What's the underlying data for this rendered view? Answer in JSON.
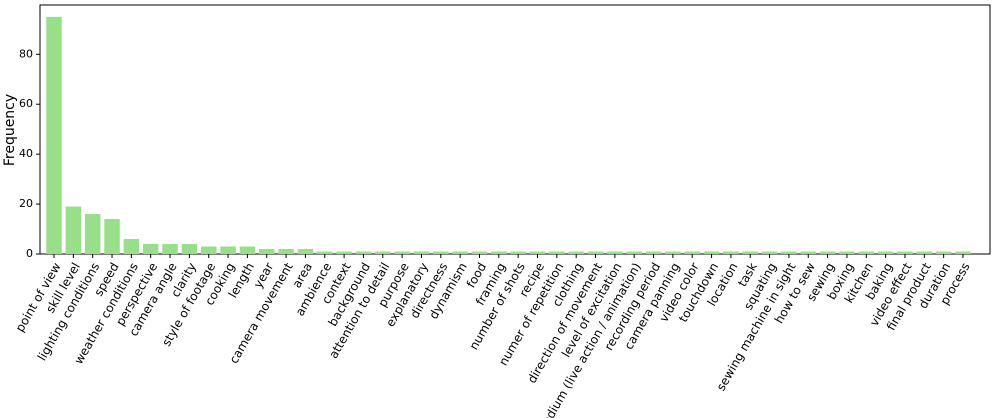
{
  "chart_data": {
    "type": "bar",
    "y_label": "Frequency",
    "categories": [
      "point of view",
      "skill level",
      "lighting conditions",
      "speed",
      "weather conditions",
      "perspective",
      "camera angle",
      "clarity",
      "style of footage",
      "cooking",
      "length",
      "year",
      "camera movement",
      "area",
      "ambience",
      "context",
      "background",
      "attention to detail",
      "purpose",
      "explanatory",
      "directness",
      "dynamism",
      "food",
      "framing",
      "number of shots",
      "recipe",
      "numer of repetition",
      "clothing",
      "direction of movement",
      "level of excitation",
      "medium (live action / animation)",
      "recording period",
      "camera panning",
      "video color",
      "touchdown",
      "location",
      "task",
      "squating",
      "sewing machine in sight",
      "how to sew",
      "sewing",
      "boxing",
      "kitchen",
      "baking",
      "video effect",
      "final product",
      "duration",
      "process"
    ],
    "values": [
      95,
      19,
      16,
      14,
      6,
      4,
      4,
      4,
      3,
      3,
      3,
      2,
      2,
      2,
      1,
      1,
      1,
      1,
      1,
      1,
      1,
      1,
      1,
      1,
      1,
      1,
      1,
      1,
      1,
      1,
      1,
      1,
      1,
      1,
      1,
      1,
      1,
      1,
      1,
      1,
      1,
      1,
      1,
      1,
      1,
      1,
      1,
      1
    ],
    "color": "#98df8a",
    "ylim": [
      0,
      99.75
    ],
    "yticks": [
      0,
      20,
      40,
      60,
      80
    ]
  }
}
